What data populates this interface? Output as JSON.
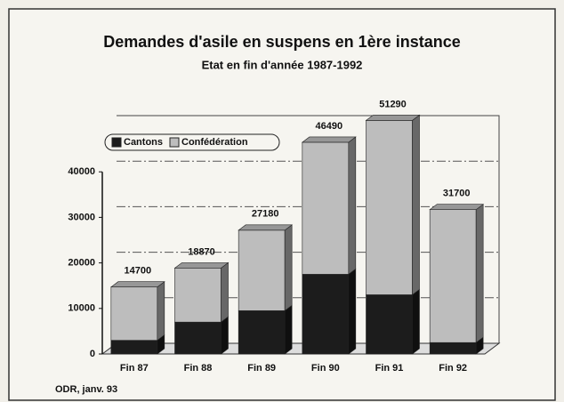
{
  "chart_data": {
    "type": "stacked-bar-3d",
    "title": "Demandes d'asile en suspens en 1ère instance",
    "subtitle": "Etat en fin d'année 1987-1992",
    "categories": [
      "Fin 87",
      "Fin 88",
      "Fin 89",
      "Fin 90",
      "Fin 91",
      "Fin 92"
    ],
    "series": [
      {
        "name": "Cantons",
        "color": "#1c1c1c",
        "values": [
          3000,
          7000,
          9500,
          17500,
          13000,
          2500
        ]
      },
      {
        "name": "Confédération",
        "color": "#bdbdbd",
        "values": [
          11700,
          11870,
          17680,
          28990,
          38290,
          29200
        ]
      }
    ],
    "totals": [
      14700,
      18870,
      27180,
      46490,
      51290,
      31700
    ],
    "ylim": [
      0,
      50000
    ],
    "yticks": [
      0,
      10000,
      20000,
      30000,
      40000
    ],
    "grid": true,
    "legend": "top-left",
    "note": "ODR, janv. 93"
  }
}
